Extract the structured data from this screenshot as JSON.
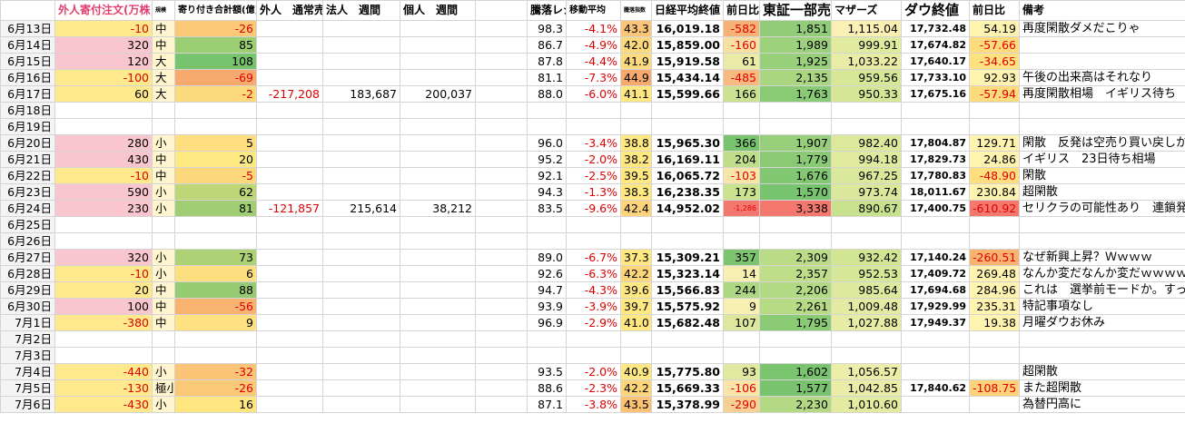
{
  "header": [
    "外人寄付注文(万株)",
    "規模",
    "寄り付き合計額(億)",
    "外人　通常売買",
    "法人　週間",
    "個人　週間",
    null,
    "騰落レシオ",
    "移動平均",
    "騰落指数",
    "日経平均終値",
    "前日比",
    "東証一部売買",
    "マザーズ",
    "ダウ終値",
    "前日比",
    "備考"
  ],
  "rows": [
    [
      "6月13日",
      "-10",
      "中",
      "-26",
      null,
      null,
      null,
      null,
      "98.3",
      "-4.1%",
      "43.3",
      "16,019.18",
      "-582",
      "1,851",
      "1,115.04",
      "17,732.48",
      "54.19",
      "再度閑散ダメだこりゃ"
    ],
    [
      "6月14日",
      "320",
      "中",
      "85",
      null,
      null,
      null,
      null,
      "86.7",
      "-4.9%",
      "42.0",
      "15,859.00",
      "-160",
      "1,989",
      "999.91",
      "17,674.82",
      "-57.66",
      null
    ],
    [
      "6月15日",
      "120",
      "大",
      "108",
      null,
      null,
      null,
      null,
      "87.8",
      "-4.4%",
      "41.9",
      "15,919.58",
      "61",
      "1,925",
      "1,033.22",
      "17,640.17",
      "-34.65",
      null
    ],
    [
      "6月16日",
      "-100",
      "大",
      "-69",
      null,
      null,
      null,
      null,
      "81.1",
      "-7.3%",
      "44.9",
      "15,434.14",
      "-485",
      "2,135",
      "959.56",
      "17,733.10",
      "92.93",
      "午後の出来高はそれなり"
    ],
    [
      "6月17日",
      "60",
      "大",
      "-2",
      "-217,208",
      "183,687",
      "200,037",
      null,
      "88.0",
      "-6.0%",
      "41.1",
      "15,599.66",
      "166",
      "1,763",
      "950.33",
      "17,675.16",
      "-57.94",
      "再度閑散相場　イギリス待ち"
    ],
    [
      "6月18日",
      null,
      null,
      null,
      null,
      null,
      null,
      null,
      null,
      null,
      null,
      null,
      null,
      null,
      null,
      null,
      null,
      null
    ],
    [
      "6月19日",
      null,
      null,
      null,
      null,
      null,
      null,
      null,
      null,
      null,
      null,
      null,
      null,
      null,
      null,
      null,
      null,
      null
    ],
    [
      "6月20日",
      "280",
      "小",
      "5",
      null,
      null,
      null,
      null,
      "96.0",
      "-3.4%",
      "38.8",
      "15,965.30",
      "366",
      "1,907",
      "982.40",
      "17,804.87",
      "129.71",
      "閑散　反発は空売り買い戻しか"
    ],
    [
      "6月21日",
      "430",
      "中",
      "20",
      null,
      null,
      null,
      null,
      "95.2",
      "-2.0%",
      "38.2",
      "16,169.11",
      "204",
      "1,779",
      "994.18",
      "17,829.73",
      "24.86",
      "イギリス　23日待ち相場"
    ],
    [
      "6月22日",
      "-10",
      "中",
      "-5",
      null,
      null,
      null,
      null,
      "92.1",
      "-2.5%",
      "39.5",
      "16,065.72",
      "-103",
      "1,676",
      "967.25",
      "17,780.83",
      "-48.90",
      "閑散"
    ],
    [
      "6月23日",
      "590",
      "小",
      "62",
      null,
      null,
      null,
      null,
      "94.3",
      "-1.3%",
      "38.3",
      "16,238.35",
      "173",
      "1,570",
      "973.74",
      "18,011.67",
      "230.84",
      "超閑散"
    ],
    [
      "6月24日",
      "230",
      "小",
      "81",
      "-121,857",
      "215,614",
      "38,212",
      null,
      "83.5",
      "-9.6%",
      "42.4",
      "14,952.02",
      "-1,286",
      "3,338",
      "890.67",
      "17,400.75",
      "-610.92",
      "セリクラの可能性あり　連鎖発生も視野"
    ],
    [
      "6月25日",
      null,
      null,
      null,
      null,
      null,
      null,
      null,
      null,
      null,
      null,
      null,
      null,
      null,
      null,
      null,
      null,
      null
    ],
    [
      "6月26日",
      null,
      null,
      null,
      null,
      null,
      null,
      null,
      null,
      null,
      null,
      null,
      null,
      null,
      null,
      null,
      null,
      null
    ],
    [
      "6月27日",
      "320",
      "小",
      "73",
      null,
      null,
      null,
      null,
      "89.0",
      "-6.7%",
      "37.3",
      "15,309.21",
      "357",
      "2,309",
      "932.42",
      "17,140.24",
      "-260.51",
      "なぜ新興上昇？Ｗｗｗｗ"
    ],
    [
      "6月28日",
      "-10",
      "小",
      "6",
      null,
      null,
      null,
      null,
      "92.6",
      "-6.3%",
      "42.2",
      "15,323.14",
      "14",
      "2,357",
      "952.53",
      "17,409.72",
      "269.48",
      "なんか変だなんか変だｗｗｗｗ"
    ],
    [
      "6月29日",
      "20",
      "中",
      "88",
      null,
      null,
      null,
      null,
      "94.7",
      "-4.3%",
      "39.6",
      "15,566.83",
      "244",
      "2,206",
      "985.64",
      "17,694.68",
      "284.96",
      "これは　選挙前モードか。すっきり。"
    ],
    [
      "6月30日",
      "100",
      "中",
      "-56",
      null,
      null,
      null,
      null,
      "93.9",
      "-3.9%",
      "39.7",
      "15,575.92",
      "9",
      "2,261",
      "1,009.48",
      "17,929.99",
      "235.31",
      "特記事項なし"
    ],
    [
      "7月1日",
      "-380",
      "中",
      "9",
      null,
      null,
      null,
      null,
      "96.9",
      "-2.9%",
      "41.0",
      "15,682.48",
      "107",
      "1,795",
      "1,027.88",
      "17,949.37",
      "19.38",
      "月曜ダウお休み"
    ],
    [
      "7月2日",
      null,
      null,
      null,
      null,
      null,
      null,
      null,
      null,
      null,
      null,
      null,
      null,
      null,
      null,
      null,
      null,
      null
    ],
    [
      "7月3日",
      null,
      null,
      null,
      null,
      null,
      null,
      null,
      null,
      null,
      null,
      null,
      null,
      null,
      null,
      null,
      null,
      null
    ],
    [
      "7月4日",
      "-440",
      "小",
      "-32",
      null,
      null,
      null,
      null,
      "93.5",
      "-2.0%",
      "40.9",
      "15,775.80",
      "93",
      "1,602",
      "1,056.57",
      null,
      null,
      "超閑散"
    ],
    [
      "7月5日",
      "-130",
      "極小",
      "-26",
      null,
      null,
      null,
      null,
      "88.6",
      "-2.3%",
      "42.2",
      "15,669.33",
      "-106",
      "1,577",
      "1,042.85",
      "17,840.62",
      "-108.75",
      "また超閑散"
    ],
    [
      "7月6日",
      "-430",
      "小",
      "16",
      null,
      null,
      null,
      null,
      "87.1",
      "-3.8%",
      "43.5",
      "15,378.99",
      "-290",
      "2,230",
      "1,010.60",
      null,
      null,
      "為替円高に"
    ]
  ]
}
